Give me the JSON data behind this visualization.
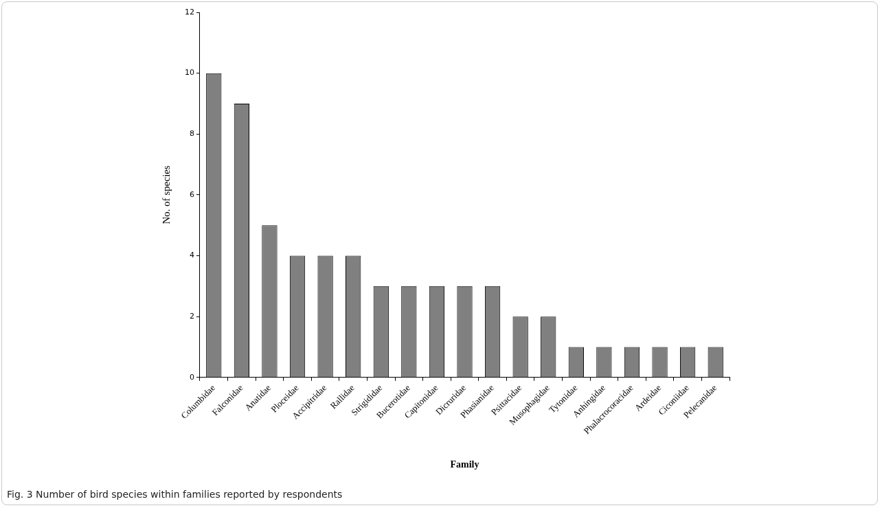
{
  "chart_data": {
    "type": "bar",
    "xlabel": "Family",
    "ylabel": "No. of species",
    "categories": [
      "Columbidae",
      "Falconidae",
      "Anatidae",
      "Ploceidae",
      "Accipitridae",
      "Rallidae",
      "Strigididae",
      "Bucerotidae",
      "Capitonidae",
      "Dicruridae",
      "Phasianidae",
      "Psittacidae",
      "Musophagidae",
      "Tytonidae",
      "Anhingidae",
      "Phalacrocoracidae",
      "Ardeidae",
      "Ciconiidae",
      "Pelecanidae"
    ],
    "values": [
      10,
      9,
      5,
      4,
      4,
      4,
      3,
      3,
      3,
      3,
      3,
      2,
      2,
      1,
      1,
      1,
      1,
      1,
      1
    ],
    "color": "#808080",
    "ylim": [
      0,
      12
    ],
    "yticks": [
      0,
      2,
      4,
      6,
      8,
      10,
      12
    ],
    "annotations": [
      "Fig. 3 Number of bird species within families reported by respondents"
    ]
  }
}
